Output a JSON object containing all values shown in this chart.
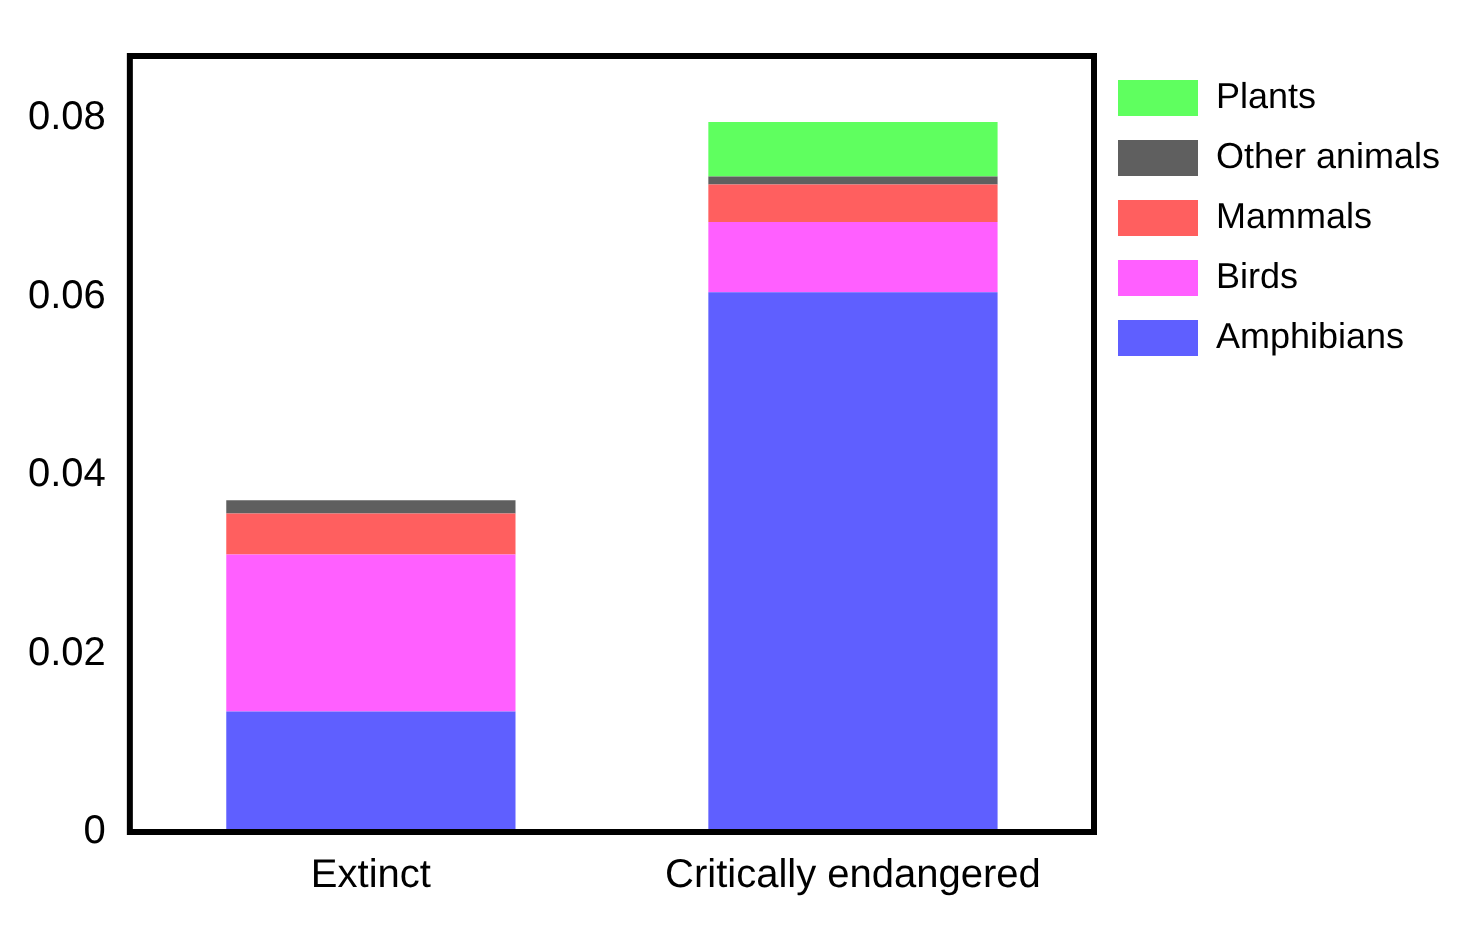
{
  "chart_data": {
    "type": "bar",
    "stacked": true,
    "categories": [
      "Extinct",
      "Critically endangered"
    ],
    "series": [
      {
        "name": "Amphibians",
        "color": "#5f5fff",
        "values": [
          0.0135,
          0.0605
        ]
      },
      {
        "name": "Birds",
        "color": "#ff5fff",
        "values": [
          0.0176,
          0.0079
        ]
      },
      {
        "name": "Mammals",
        "color": "#ff5f5f",
        "values": [
          0.0046,
          0.0042
        ]
      },
      {
        "name": "Other animals",
        "color": "#5f5f5f",
        "values": [
          0.0015,
          0.0009
        ]
      },
      {
        "name": "Plants",
        "color": "#5fff5f",
        "values": [
          0,
          0.0061
        ]
      }
    ],
    "ylim": [
      0,
      0.087
    ],
    "yticks": [
      0,
      0.02,
      0.04,
      0.06,
      0.08
    ],
    "grid": false,
    "legend": "right"
  }
}
